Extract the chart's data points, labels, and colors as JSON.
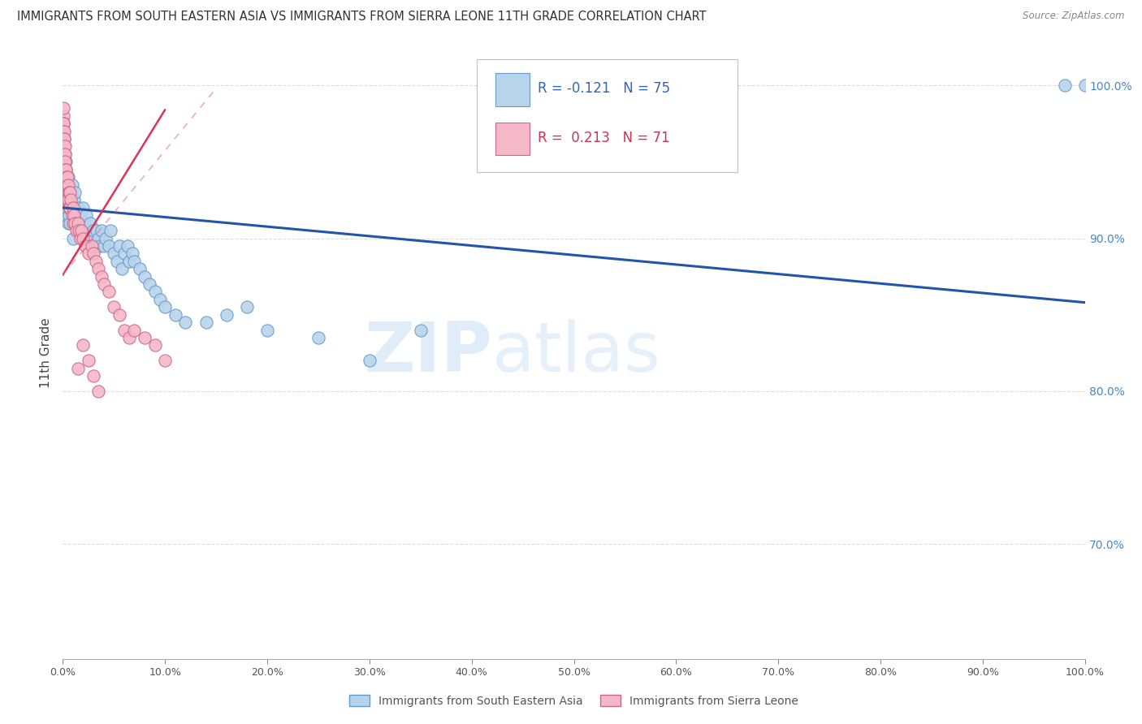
{
  "title": "IMMIGRANTS FROM SOUTH EASTERN ASIA VS IMMIGRANTS FROM SIERRA LEONE 11TH GRADE CORRELATION CHART",
  "source": "Source: ZipAtlas.com",
  "ylabel": "11th Grade",
  "legend_r1": "R = -0.121",
  "legend_n1": "N = 75",
  "legend_r2": "R =  0.213",
  "legend_n2": "N = 71",
  "color_blue": "#b8d4ea",
  "color_pink": "#f5b8c8",
  "color_blue_line": "#2255aa",
  "color_pink_line": "#dd3355",
  "color_pink_dash": "#e87090",
  "watermark_zip": "ZIP",
  "watermark_atlas": "atlas",
  "blue_scatter_x": [
    0.001,
    0.001,
    0.001,
    0.002,
    0.002,
    0.002,
    0.003,
    0.003,
    0.003,
    0.003,
    0.004,
    0.004,
    0.005,
    0.005,
    0.005,
    0.006,
    0.006,
    0.007,
    0.007,
    0.008,
    0.009,
    0.01,
    0.01,
    0.011,
    0.012,
    0.013,
    0.014,
    0.015,
    0.016,
    0.017,
    0.018,
    0.02,
    0.021,
    0.022,
    0.023,
    0.025,
    0.026,
    0.027,
    0.028,
    0.03,
    0.032,
    0.033,
    0.035,
    0.036,
    0.038,
    0.04,
    0.042,
    0.045,
    0.047,
    0.05,
    0.053,
    0.055,
    0.058,
    0.06,
    0.063,
    0.065,
    0.068,
    0.07,
    0.075,
    0.08,
    0.085,
    0.09,
    0.095,
    0.1,
    0.11,
    0.12,
    0.14,
    0.16,
    0.18,
    0.2,
    0.25,
    0.3,
    0.35,
    0.98,
    1.0
  ],
  "blue_scatter_y": [
    0.96,
    0.945,
    0.93,
    0.955,
    0.935,
    0.92,
    0.95,
    0.94,
    0.925,
    0.915,
    0.935,
    0.92,
    0.94,
    0.925,
    0.91,
    0.93,
    0.915,
    0.925,
    0.91,
    0.92,
    0.935,
    0.915,
    0.9,
    0.925,
    0.93,
    0.915,
    0.905,
    0.91,
    0.92,
    0.915,
    0.905,
    0.92,
    0.91,
    0.9,
    0.915,
    0.905,
    0.9,
    0.91,
    0.895,
    0.905,
    0.895,
    0.905,
    0.9,
    0.895,
    0.905,
    0.895,
    0.9,
    0.895,
    0.905,
    0.89,
    0.885,
    0.895,
    0.88,
    0.89,
    0.895,
    0.885,
    0.89,
    0.885,
    0.88,
    0.875,
    0.87,
    0.865,
    0.86,
    0.855,
    0.85,
    0.845,
    0.845,
    0.85,
    0.855,
    0.84,
    0.835,
    0.82,
    0.84,
    1.0,
    1.0
  ],
  "pink_scatter_x": [
    0.0002,
    0.0003,
    0.0004,
    0.0005,
    0.0005,
    0.0006,
    0.0007,
    0.0007,
    0.0008,
    0.0009,
    0.001,
    0.001,
    0.0012,
    0.0013,
    0.0014,
    0.0015,
    0.0016,
    0.0017,
    0.0018,
    0.002,
    0.002,
    0.0022,
    0.0024,
    0.0025,
    0.003,
    0.003,
    0.0032,
    0.0035,
    0.004,
    0.004,
    0.0045,
    0.005,
    0.005,
    0.006,
    0.006,
    0.007,
    0.007,
    0.008,
    0.009,
    0.01,
    0.01,
    0.011,
    0.012,
    0.013,
    0.015,
    0.016,
    0.017,
    0.018,
    0.02,
    0.022,
    0.025,
    0.028,
    0.03,
    0.032,
    0.035,
    0.038,
    0.04,
    0.045,
    0.05,
    0.055,
    0.06,
    0.065,
    0.07,
    0.08,
    0.09,
    0.1,
    0.015,
    0.02,
    0.025,
    0.03,
    0.035
  ],
  "pink_scatter_y": [
    0.98,
    0.975,
    0.985,
    0.975,
    0.965,
    0.975,
    0.97,
    0.96,
    0.965,
    0.955,
    0.97,
    0.96,
    0.965,
    0.955,
    0.96,
    0.965,
    0.95,
    0.955,
    0.96,
    0.95,
    0.94,
    0.955,
    0.945,
    0.95,
    0.945,
    0.935,
    0.945,
    0.94,
    0.935,
    0.925,
    0.94,
    0.935,
    0.925,
    0.93,
    0.92,
    0.93,
    0.92,
    0.925,
    0.915,
    0.92,
    0.91,
    0.915,
    0.91,
    0.905,
    0.91,
    0.905,
    0.9,
    0.905,
    0.9,
    0.895,
    0.89,
    0.895,
    0.89,
    0.885,
    0.88,
    0.875,
    0.87,
    0.865,
    0.855,
    0.85,
    0.84,
    0.835,
    0.84,
    0.835,
    0.83,
    0.82,
    0.815,
    0.83,
    0.82,
    0.81,
    0.8
  ],
  "blue_trend_x": [
    0.0,
    1.0
  ],
  "blue_trend_y": [
    0.92,
    0.858
  ],
  "pink_trend_x": [
    0.0,
    0.1
  ],
  "pink_trend_y": [
    0.876,
    0.984
  ],
  "xlim": [
    0.0,
    1.0
  ],
  "ylim": [
    0.625,
    1.025
  ],
  "yticks": [
    0.7,
    0.8,
    0.9,
    1.0
  ],
  "ytick_labels": [
    "70.0%",
    "80.0%",
    "90.0%",
    "100.0%"
  ],
  "grid_color": "#dddddd",
  "bg_color": "#ffffff"
}
